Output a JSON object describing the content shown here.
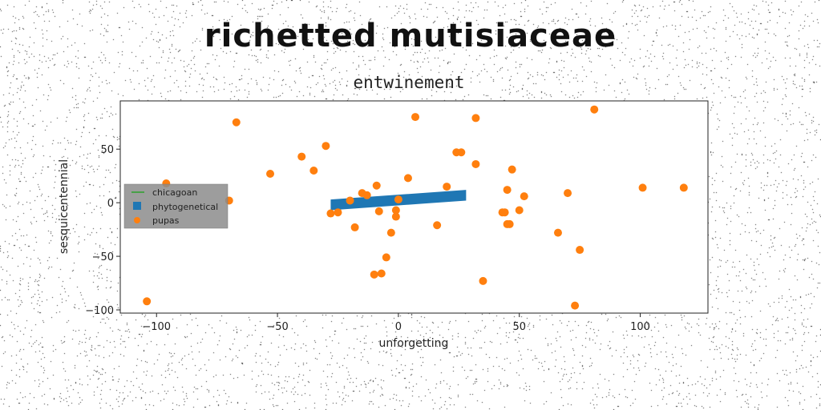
{
  "figure": {
    "suptitle": "richetted mutisiaceae"
  },
  "chart_data": {
    "type": "scatter",
    "title": "entwinement",
    "xlabel": "unforgetting",
    "ylabel": "sesquicentennial",
    "xlim": [
      -115,
      128
    ],
    "ylim": [
      -103,
      95
    ],
    "xticks": [
      -100,
      -50,
      0,
      50,
      100
    ],
    "yticks": [
      -100,
      -50,
      0,
      50
    ],
    "legend": {
      "placement": "center-left",
      "entries": [
        "chicagoan",
        "phytogenetical",
        "pupas"
      ]
    },
    "series": [
      {
        "name": "chicagoan",
        "kind": "line",
        "color": "#2ca02c",
        "points": []
      },
      {
        "name": "phytogenetical",
        "kind": "band",
        "color": "#1f77b4",
        "x": [
          -28,
          28
        ],
        "y_center": [
          -2,
          7
        ],
        "half_width": 5
      },
      {
        "name": "pupas",
        "kind": "scatter",
        "color": "#ff7f0e",
        "points": [
          [
            -104,
            -92
          ],
          [
            -96,
            18
          ],
          [
            -70,
            2
          ],
          [
            -67,
            75
          ],
          [
            -53,
            27
          ],
          [
            -40,
            43
          ],
          [
            -35,
            30
          ],
          [
            -30,
            53
          ],
          [
            -28,
            -10
          ],
          [
            -25,
            -9
          ],
          [
            -20,
            2
          ],
          [
            -18,
            -23
          ],
          [
            -15,
            9
          ],
          [
            -13,
            7
          ],
          [
            -10,
            -67
          ],
          [
            -9,
            16
          ],
          [
            -8,
            -8
          ],
          [
            -7,
            -66
          ],
          [
            -5,
            -51
          ],
          [
            -3,
            -28
          ],
          [
            -1,
            -13
          ],
          [
            -1,
            -7
          ],
          [
            0,
            3
          ],
          [
            4,
            23
          ],
          [
            7,
            80
          ],
          [
            16,
            -21
          ],
          [
            20,
            15
          ],
          [
            24,
            47
          ],
          [
            26,
            47
          ],
          [
            32,
            36
          ],
          [
            32,
            79
          ],
          [
            35,
            -73
          ],
          [
            43,
            -9
          ],
          [
            44,
            -9
          ],
          [
            45,
            -20
          ],
          [
            45,
            12
          ],
          [
            46,
            -20
          ],
          [
            47,
            31
          ],
          [
            50,
            -7
          ],
          [
            52,
            6
          ],
          [
            66,
            -28
          ],
          [
            70,
            9
          ],
          [
            73,
            -96
          ],
          [
            75,
            -44
          ],
          [
            81,
            87
          ],
          [
            101,
            14
          ],
          [
            118,
            14
          ]
        ]
      }
    ]
  }
}
